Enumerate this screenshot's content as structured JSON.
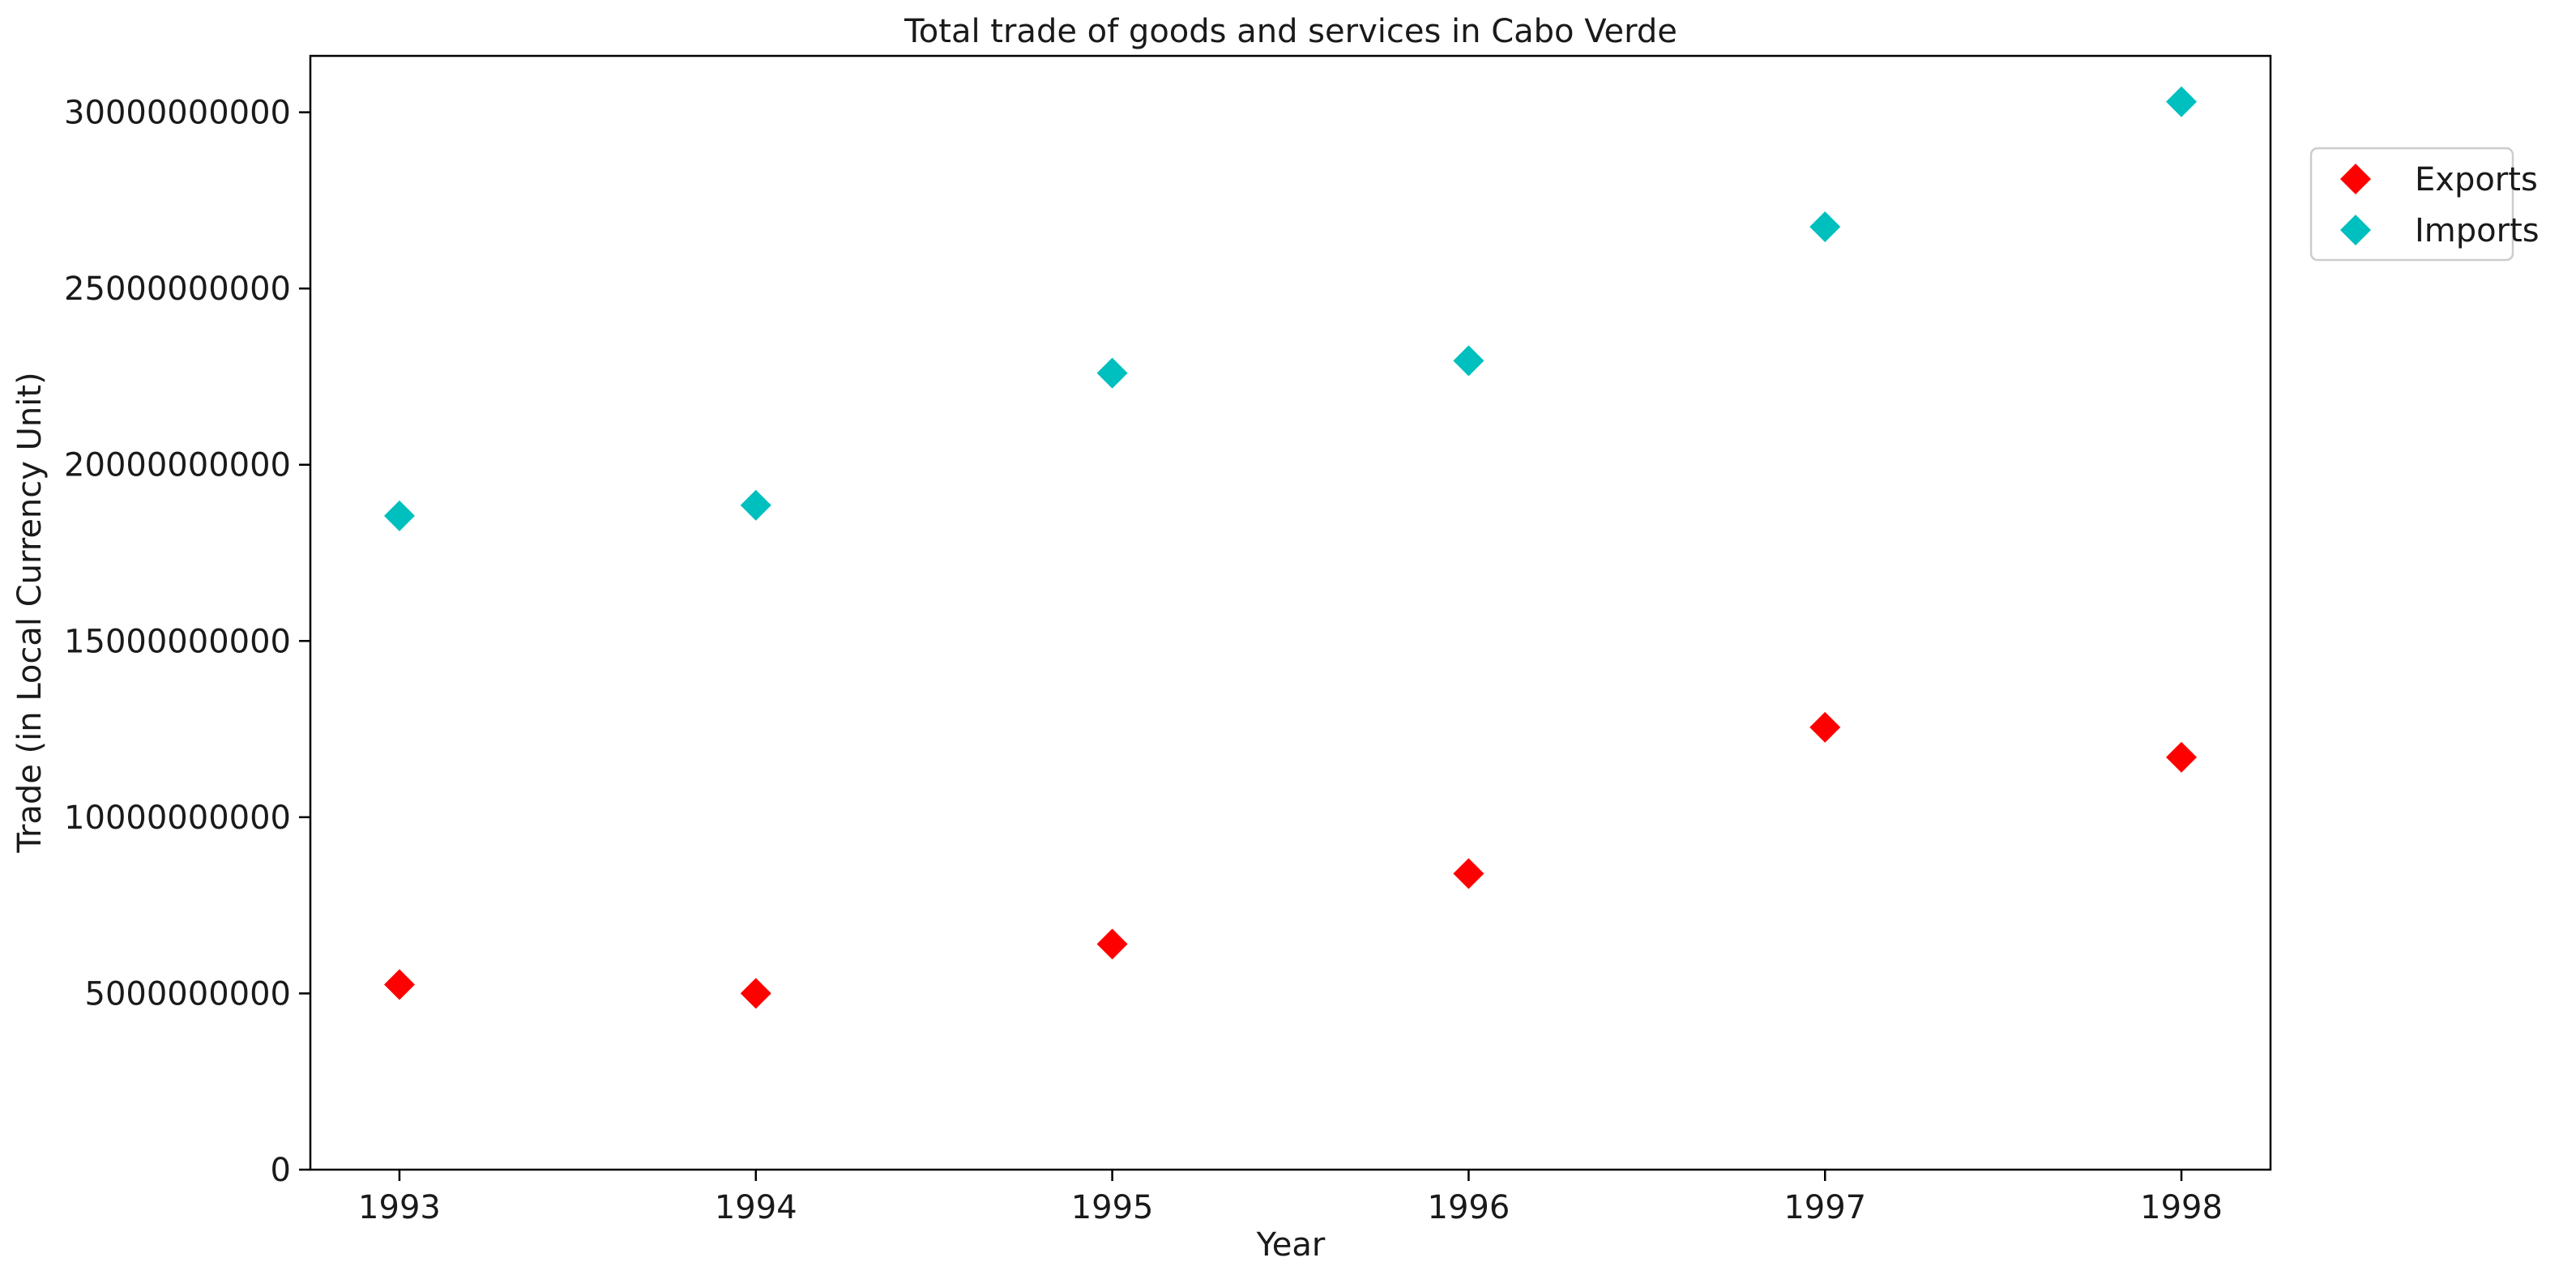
{
  "chart_data": {
    "type": "scatter",
    "title": "Total trade of goods and services in Cabo Verde",
    "xlabel": "Year",
    "ylabel": "Trade (in Local Currency Unit)",
    "x": [
      1993,
      1994,
      1995,
      1996,
      1997,
      1998
    ],
    "x_ticks": [
      "1993",
      "1994",
      "1995",
      "1996",
      "1997",
      "1998"
    ],
    "y_ticks": [
      "0",
      "5000000000",
      "10000000000",
      "15000000000",
      "20000000000",
      "25000000000",
      "30000000000"
    ],
    "xlim": [
      1992.75,
      1998.25
    ],
    "ylim": [
      0,
      31600000000
    ],
    "grid": false,
    "legend_position": "outside-top-right",
    "marker": "diamond",
    "series": [
      {
        "name": "Exports",
        "color": "#ff0000",
        "values": [
          5250000000,
          5000000000,
          6400000000,
          8400000000,
          12550000000,
          11700000000
        ]
      },
      {
        "name": "Imports",
        "color": "#00bfbf",
        "values": [
          18550000000,
          18850000000,
          22600000000,
          22950000000,
          26750000000,
          30300000000
        ]
      }
    ]
  }
}
